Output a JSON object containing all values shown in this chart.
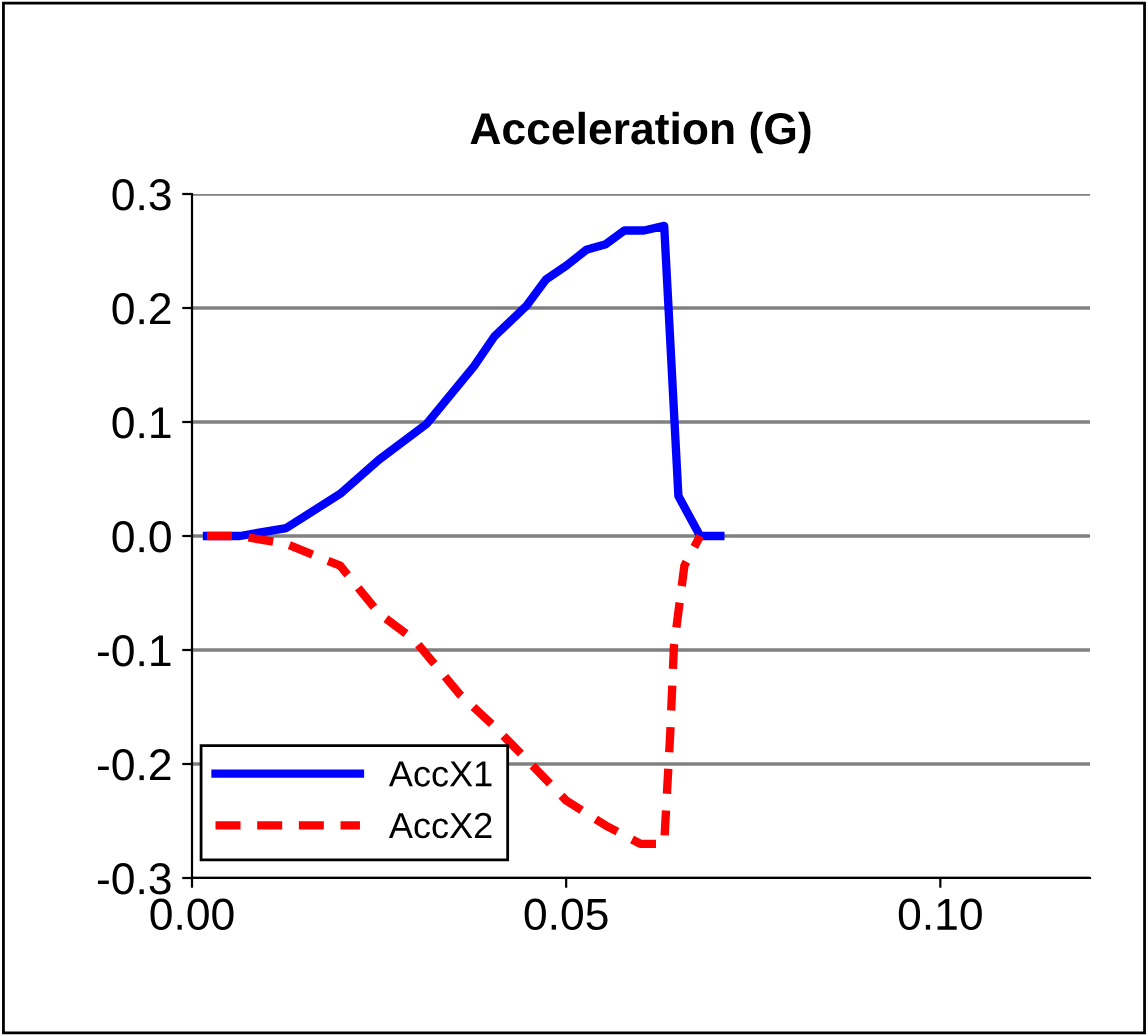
{
  "chart_data": {
    "type": "line",
    "title": "Acceleration (G)",
    "xlim": [
      0,
      0.12
    ],
    "xticks": [
      {
        "value": 0,
        "label": "0.00"
      },
      {
        "value": 0.05,
        "label": "0.05"
      },
      {
        "value": 0.1,
        "label": "0.10"
      }
    ],
    "ylim": [
      -0.3,
      0.3
    ],
    "yticks": [
      {
        "value": -0.3,
        "label": "-0.3"
      },
      {
        "value": -0.2,
        "label": "-0.2"
      },
      {
        "value": -0.1,
        "label": "-0.1"
      },
      {
        "value": 0,
        "label": "0.0"
      },
      {
        "value": 0.1,
        "label": "0.1"
      },
      {
        "value": 0.2,
        "label": "0.2"
      },
      {
        "value": 0.3,
        "label": "0.3"
      }
    ],
    "grid": "y",
    "legend": "bottom left",
    "series": [
      {
        "name": "AccX1",
        "color": "#0000ff",
        "line_style": "solid",
        "x": [
          0.002,
          0.0064,
          0.0126,
          0.0198,
          0.025,
          0.0313,
          0.0377,
          0.0404,
          0.0447,
          0.0473,
          0.05,
          0.0527,
          0.0553,
          0.0578,
          0.0604,
          0.0631,
          0.065,
          0.0679,
          0.0706
        ],
        "values": [
          0,
          0,
          0.007,
          0.037,
          0.067,
          0.098,
          0.149,
          0.175,
          0.202,
          0.225,
          0.237,
          0.251,
          0.256,
          0.268,
          0.268,
          0.272,
          0.035,
          0,
          0
        ]
      },
      {
        "name": "AccX2",
        "color": "#ff0000",
        "line_style": "dashed",
        "x": [
          0.002,
          0.0064,
          0.0126,
          0.0198,
          0.025,
          0.0297,
          0.0358,
          0.0404,
          0.0447,
          0.05,
          0.0553,
          0.0599,
          0.0631,
          0.0639,
          0.0644,
          0.0658,
          0.0679
        ],
        "values": [
          0,
          0,
          -0.007,
          -0.026,
          -0.068,
          -0.091,
          -0.139,
          -0.167,
          -0.196,
          -0.232,
          -0.254,
          -0.27,
          -0.27,
          -0.174,
          -0.097,
          -0.026,
          0
        ]
      }
    ]
  }
}
